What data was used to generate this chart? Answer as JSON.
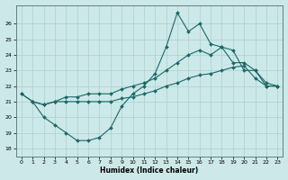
{
  "xlabel": "Humidex (Indice chaleur)",
  "xlim": [
    -0.5,
    23.5
  ],
  "ylim": [
    17.5,
    27.2
  ],
  "yticks": [
    18,
    19,
    20,
    21,
    22,
    23,
    24,
    25,
    26
  ],
  "xticks": [
    0,
    1,
    2,
    3,
    4,
    5,
    6,
    7,
    8,
    9,
    10,
    11,
    12,
    13,
    14,
    15,
    16,
    17,
    18,
    19,
    20,
    21,
    22,
    23
  ],
  "bg_color": "#cce8e8",
  "grid_color": "#aad0d0",
  "line_color": "#1a6868",
  "line1_x": [
    0,
    1,
    2,
    3,
    4,
    5,
    6,
    7,
    8,
    9,
    10,
    11,
    12,
    13,
    14,
    15,
    16,
    17,
    18,
    19,
    20,
    21,
    22,
    23
  ],
  "line1_y": [
    21.5,
    21.0,
    20.0,
    19.5,
    19.0,
    18.5,
    18.5,
    18.7,
    19.3,
    20.7,
    21.5,
    22.0,
    22.8,
    24.5,
    26.7,
    25.5,
    26.0,
    24.7,
    24.5,
    24.3,
    23.0,
    23.0,
    22.0,
    22.0
  ],
  "line2_x": [
    0,
    1,
    2,
    3,
    4,
    5,
    6,
    7,
    8,
    9,
    10,
    11,
    12,
    13,
    14,
    15,
    16,
    17,
    18,
    19,
    20,
    21,
    22,
    23
  ],
  "line2_y": [
    21.5,
    21.0,
    20.8,
    21.0,
    21.3,
    21.3,
    21.5,
    21.5,
    21.5,
    21.8,
    22.0,
    22.2,
    22.5,
    23.0,
    23.5,
    24.0,
    24.3,
    24.0,
    24.5,
    23.5,
    23.5,
    23.0,
    22.2,
    22.0
  ],
  "line3_x": [
    1,
    2,
    3,
    4,
    5,
    6,
    7,
    8,
    9,
    10,
    11,
    12,
    13,
    14,
    15,
    16,
    17,
    18,
    19,
    20,
    21,
    22,
    23
  ],
  "line3_y": [
    21.0,
    20.8,
    21.0,
    21.0,
    21.0,
    21.0,
    21.0,
    21.0,
    21.2,
    21.3,
    21.5,
    21.7,
    22.0,
    22.2,
    22.5,
    22.7,
    22.8,
    23.0,
    23.2,
    23.3,
    22.5,
    22.0,
    22.0
  ]
}
